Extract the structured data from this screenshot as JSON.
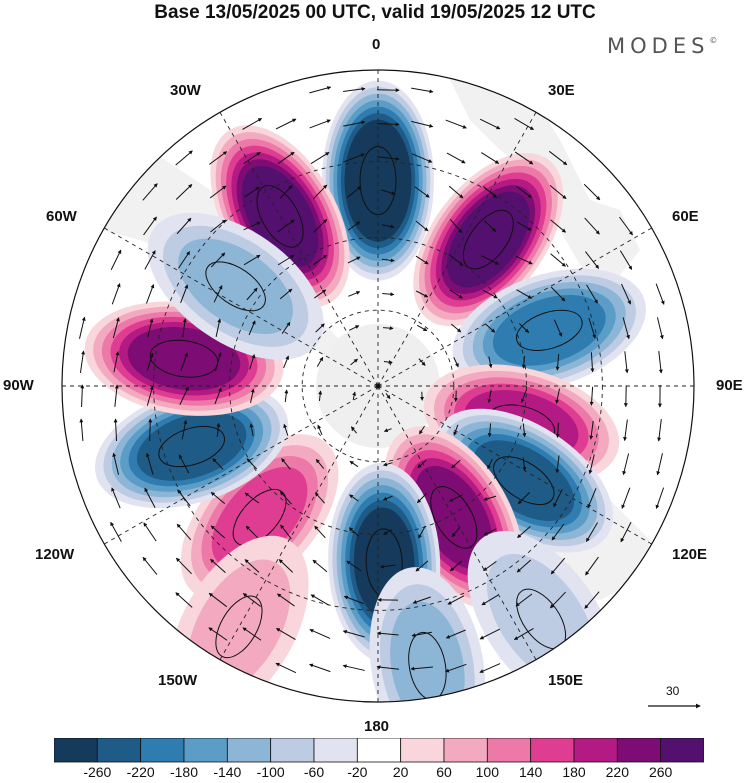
{
  "title": "Base 13/05/2025 00 UTC, valid 19/05/2025 12 UTC",
  "brand": "MODES",
  "brand_mark": "©",
  "longitude_labels": {
    "top": "0",
    "top_right": "30E",
    "right_upper": "60E",
    "right": "90E",
    "right_lower": "120E",
    "bottom_right": "150E",
    "bottom": "180",
    "bottom_left": "150W",
    "left_lower": "120W",
    "left": "90W",
    "left_upper": "60W",
    "top_left": "30W"
  },
  "vector_scale": {
    "label": "30"
  },
  "colorbar": {
    "ticks": [
      "-260",
      "-220",
      "-180",
      "-140",
      "-100",
      "-60",
      "-20",
      "20",
      "60",
      "100",
      "140",
      "180",
      "220",
      "260"
    ],
    "colors": [
      "#153a5c",
      "#1f5b87",
      "#2f7db0",
      "#5c9dc7",
      "#8db5d6",
      "#bdcbe3",
      "#e2e3f0",
      "#ffffff",
      "#f8d6dc",
      "#f3a9bf",
      "#ec79a8",
      "#df3d92",
      "#b41a83",
      "#7d0c74",
      "#53106f"
    ]
  },
  "map": {
    "projection": "south-polar-stereographic",
    "continent_color": "#efefef",
    "anomaly_centers": [
      {
        "lon": 0,
        "lat_ring": 0.65,
        "value": -300
      },
      {
        "lon": -30,
        "lat_ring": 0.62,
        "value": 260
      },
      {
        "lon": 37,
        "lat_ring": 0.58,
        "value": 260
      },
      {
        "lon": 72,
        "lat_ring": 0.57,
        "value": -200
      },
      {
        "lon": 105,
        "lat_ring": 0.47,
        "value": 200
      },
      {
        "lon": 123,
        "lat_ring": 0.55,
        "value": -220
      },
      {
        "lon": 150,
        "lat_ring": 0.48,
        "value": 240
      },
      {
        "lon": 178,
        "lat_ring": 0.56,
        "value": -260
      },
      {
        "lon": -138,
        "lat_ring": 0.56,
        "value": 160
      },
      {
        "lon": -108,
        "lat_ring": 0.62,
        "value": -250
      },
      {
        "lon": -82,
        "lat_ring": 0.62,
        "value": 220
      },
      {
        "lon": -55,
        "lat_ring": 0.55,
        "value": -100
      },
      {
        "lon": 170,
        "lat_ring": 0.9,
        "value": -120
      },
      {
        "lon": -150,
        "lat_ring": 0.88,
        "value": 60
      },
      {
        "lon": 145,
        "lat_ring": 0.9,
        "value": -80
      }
    ]
  }
}
